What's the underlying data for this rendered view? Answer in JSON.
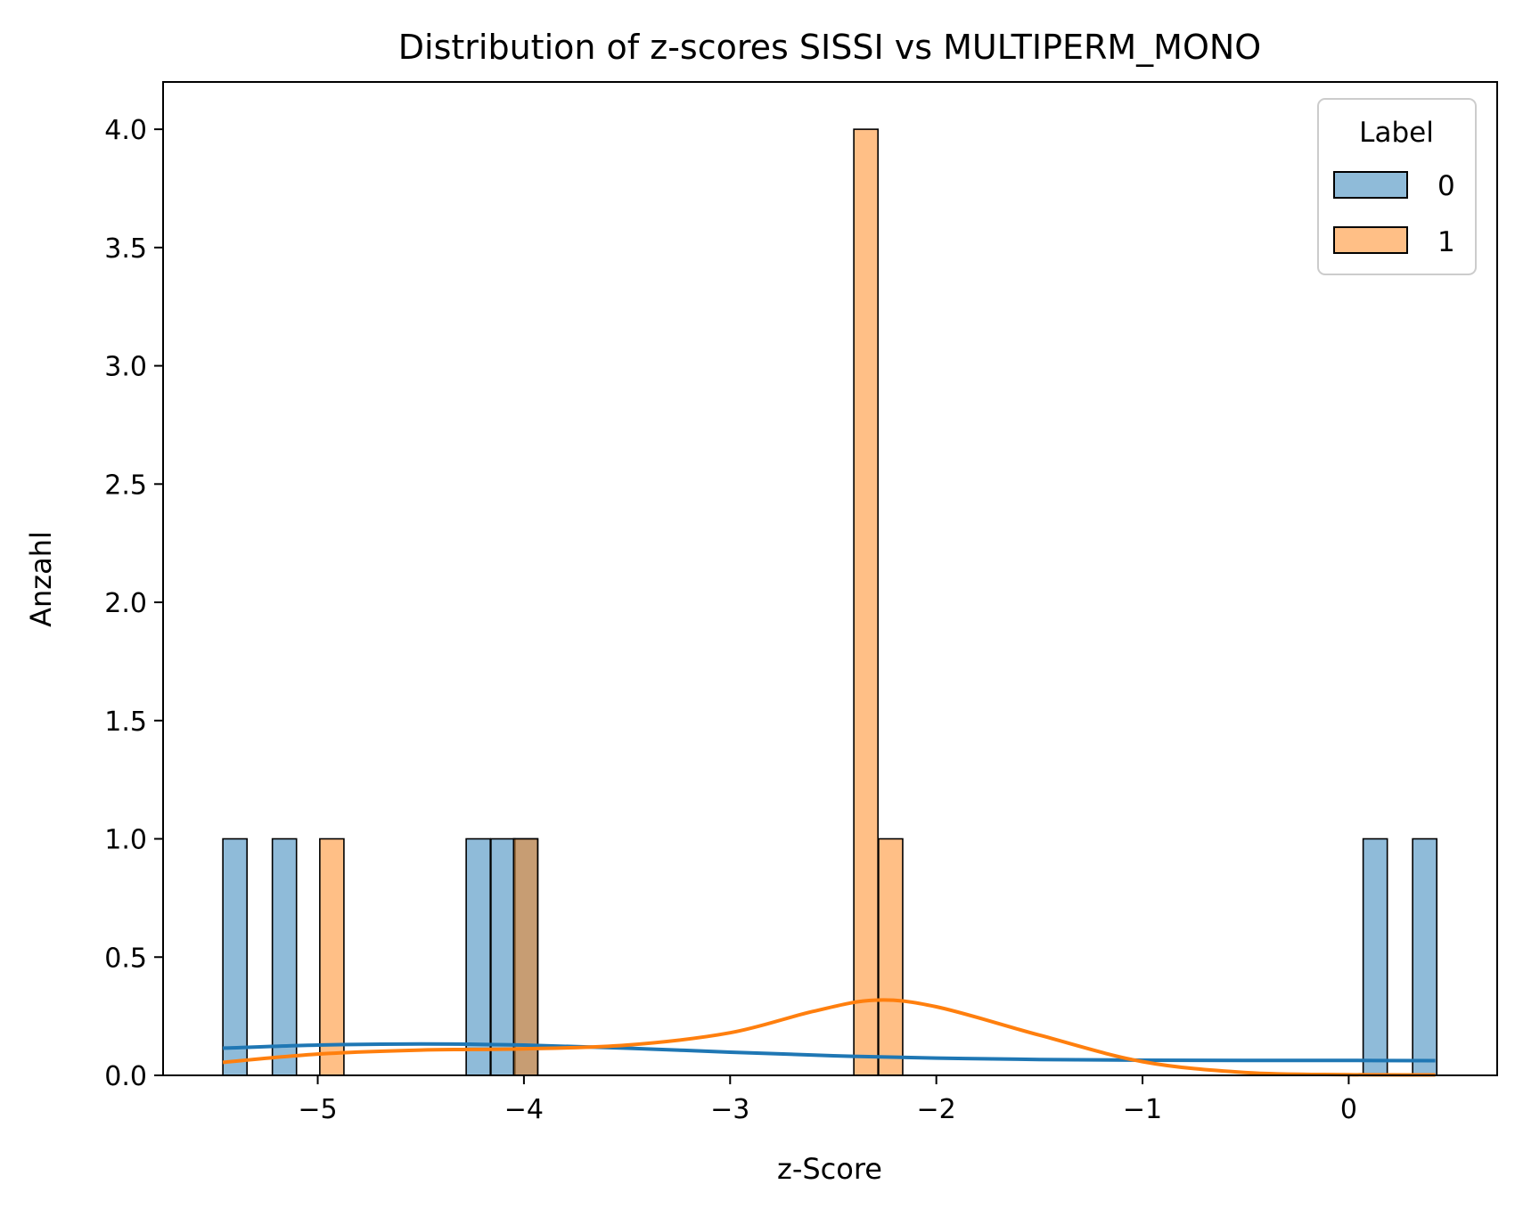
{
  "chart_data": {
    "type": "bar",
    "title": "Distribution of z-scores SISSI vs MULTIPERM_MONO",
    "xlabel": "z-Score",
    "ylabel": "Anzahl",
    "xlim": [
      -5.75,
      0.72
    ],
    "ylim": [
      0,
      4.2
    ],
    "bin_width": 0.117,
    "x_ticks": [
      {
        "value": -5,
        "label": "−5"
      },
      {
        "value": -4,
        "label": "−4"
      },
      {
        "value": -3,
        "label": "−3"
      },
      {
        "value": -2,
        "label": "−2"
      },
      {
        "value": -1,
        "label": "−1"
      },
      {
        "value": 0,
        "label": "0"
      }
    ],
    "y_ticks": [
      {
        "value": 0.0,
        "label": "0.0"
      },
      {
        "value": 0.5,
        "label": "0.5"
      },
      {
        "value": 1.0,
        "label": "1.0"
      },
      {
        "value": 1.5,
        "label": "1.5"
      },
      {
        "value": 2.0,
        "label": "2.0"
      },
      {
        "value": 2.5,
        "label": "2.5"
      },
      {
        "value": 3.0,
        "label": "3.0"
      },
      {
        "value": 3.5,
        "label": "3.5"
      },
      {
        "value": 4.0,
        "label": "4.0"
      }
    ],
    "legend": {
      "title": "Label",
      "placement": "top-right"
    },
    "series": [
      {
        "name": "0",
        "color": "#1f77b4",
        "bars": [
          {
            "x": -5.46,
            "count": 1
          },
          {
            "x": -5.22,
            "count": 1
          },
          {
            "x": -4.28,
            "count": 1
          },
          {
            "x": -4.16,
            "count": 1
          },
          {
            "x": -4.05,
            "count": 1
          },
          {
            "x": 0.07,
            "count": 1
          },
          {
            "x": 0.31,
            "count": 1
          }
        ],
        "kde": [
          [
            -5.46,
            0.115
          ],
          [
            -5.0,
            0.128
          ],
          [
            -4.5,
            0.133
          ],
          [
            -4.0,
            0.128
          ],
          [
            -3.5,
            0.115
          ],
          [
            -3.0,
            0.098
          ],
          [
            -2.5,
            0.083
          ],
          [
            -2.0,
            0.073
          ],
          [
            -1.5,
            0.067
          ],
          [
            -1.0,
            0.064
          ],
          [
            -0.5,
            0.063
          ],
          [
            0.0,
            0.063
          ],
          [
            0.42,
            0.062
          ]
        ]
      },
      {
        "name": "1",
        "color": "#ff7f0e",
        "bars": [
          {
            "x": -4.99,
            "count": 1
          },
          {
            "x": -4.05,
            "count": 1
          },
          {
            "x": -2.4,
            "count": 4
          },
          {
            "x": -2.28,
            "count": 1
          }
        ],
        "kde": [
          [
            -5.46,
            0.055
          ],
          [
            -5.0,
            0.09
          ],
          [
            -4.5,
            0.107
          ],
          [
            -4.0,
            0.112
          ],
          [
            -3.5,
            0.128
          ],
          [
            -3.0,
            0.18
          ],
          [
            -2.6,
            0.27
          ],
          [
            -2.3,
            0.318
          ],
          [
            -2.0,
            0.29
          ],
          [
            -1.5,
            0.17
          ],
          [
            -1.0,
            0.058
          ],
          [
            -0.5,
            0.012
          ],
          [
            0.0,
            0.003
          ],
          [
            0.42,
            0.002
          ]
        ]
      }
    ]
  }
}
